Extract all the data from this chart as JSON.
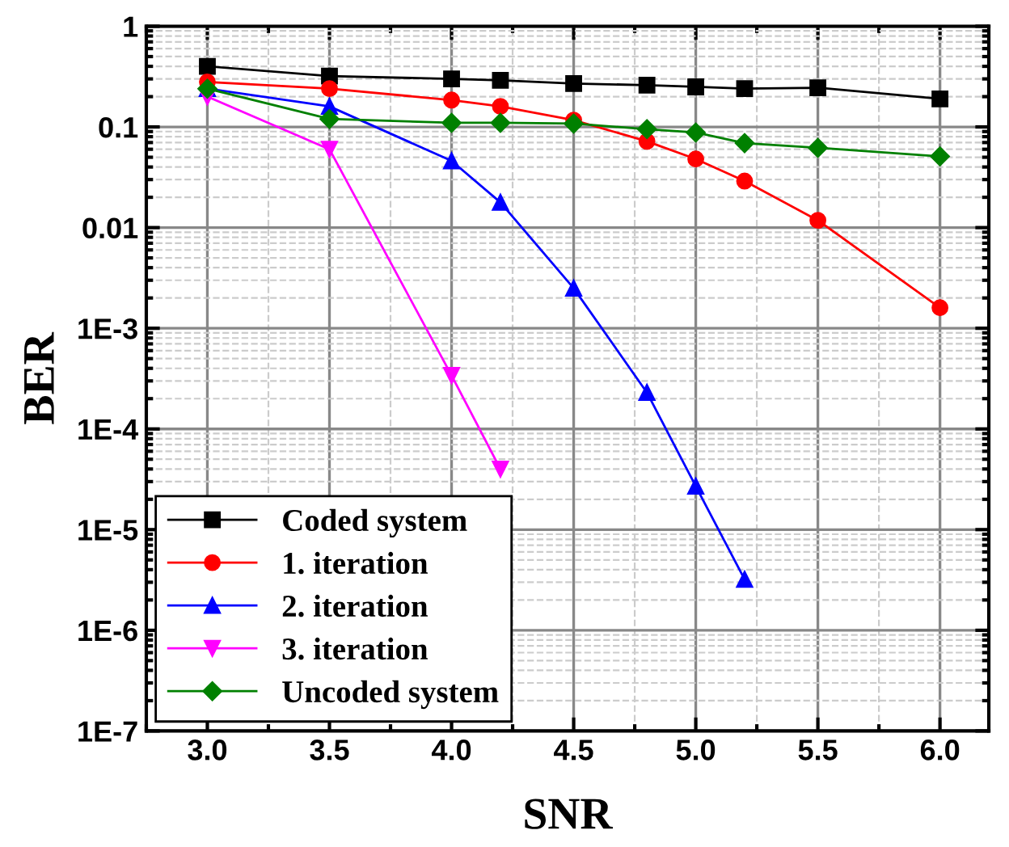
{
  "chart_data": {
    "type": "line",
    "xlabel": "SNR",
    "ylabel": "BER",
    "log": "y",
    "grid": true,
    "legend": "bottom left",
    "xlim": [
      2.75,
      6.2
    ],
    "xticks": [
      {
        "value": 3,
        "label": "3.0"
      },
      {
        "value": 3.5,
        "label": "3.5"
      },
      {
        "value": 4,
        "label": "4.0"
      },
      {
        "value": 4.5,
        "label": "4.5"
      },
      {
        "value": 5,
        "label": "5.0"
      },
      {
        "value": 5.5,
        "label": "5.5"
      },
      {
        "value": 6,
        "label": "6.0"
      }
    ],
    "ylim": [
      1e-07,
      1
    ],
    "yticks": [
      {
        "value": 1e-07,
        "label": "1E-7"
      },
      {
        "value": 1e-06,
        "label": "1E-6"
      },
      {
        "value": 1e-05,
        "label": "1E-5"
      },
      {
        "value": 0.0001,
        "label": "1E-4"
      },
      {
        "value": 0.001,
        "label": "1E-3"
      },
      {
        "value": 0.01,
        "label": "0.01"
      },
      {
        "value": 0.1,
        "label": "0.1"
      },
      {
        "value": 1,
        "label": "1"
      }
    ],
    "series": [
      {
        "name": "Coded system",
        "color": "#000000",
        "marker": "square",
        "x": [
          3.0,
          3.5,
          4.0,
          4.2,
          4.5,
          4.8,
          5.0,
          5.2,
          5.5,
          6.0
        ],
        "values": [
          0.4,
          0.32,
          0.3,
          0.29,
          0.27,
          0.26,
          0.25,
          0.24,
          0.245,
          0.19
        ]
      },
      {
        "name": "1. iteration",
        "color": "#ff0000",
        "marker": "circle",
        "x": [
          3.0,
          3.5,
          4.0,
          4.2,
          4.5,
          4.8,
          5.0,
          5.2,
          5.5,
          6.0
        ],
        "values": [
          0.28,
          0.24,
          0.185,
          0.16,
          0.117,
          0.072,
          0.048,
          0.029,
          0.0118,
          0.0016
        ]
      },
      {
        "name": "2. iteration",
        "color": "#0000ff",
        "marker": "triangle",
        "x": [
          3.0,
          3.5,
          4.0,
          4.2,
          4.5,
          4.8,
          5.0,
          5.2
        ],
        "values": [
          0.24,
          0.16,
          0.046,
          0.0178,
          0.0025,
          0.00023,
          2.7e-05,
          3.2e-06
        ]
      },
      {
        "name": "3. iteration",
        "color": "#ff00ff",
        "marker": "triangle_down",
        "x": [
          3.0,
          3.5,
          4.0,
          4.2
        ],
        "values": [
          0.2,
          0.06,
          0.00034,
          4e-05
        ]
      },
      {
        "name": "Uncoded system",
        "color": "#008000",
        "marker": "diamond",
        "x": [
          3.0,
          3.5,
          4.0,
          4.2,
          4.5,
          4.8,
          5.0,
          5.2,
          5.5,
          6.0
        ],
        "values": [
          0.24,
          0.12,
          0.11,
          0.11,
          0.108,
          0.095,
          0.088,
          0.069,
          0.062,
          0.051
        ]
      }
    ]
  }
}
